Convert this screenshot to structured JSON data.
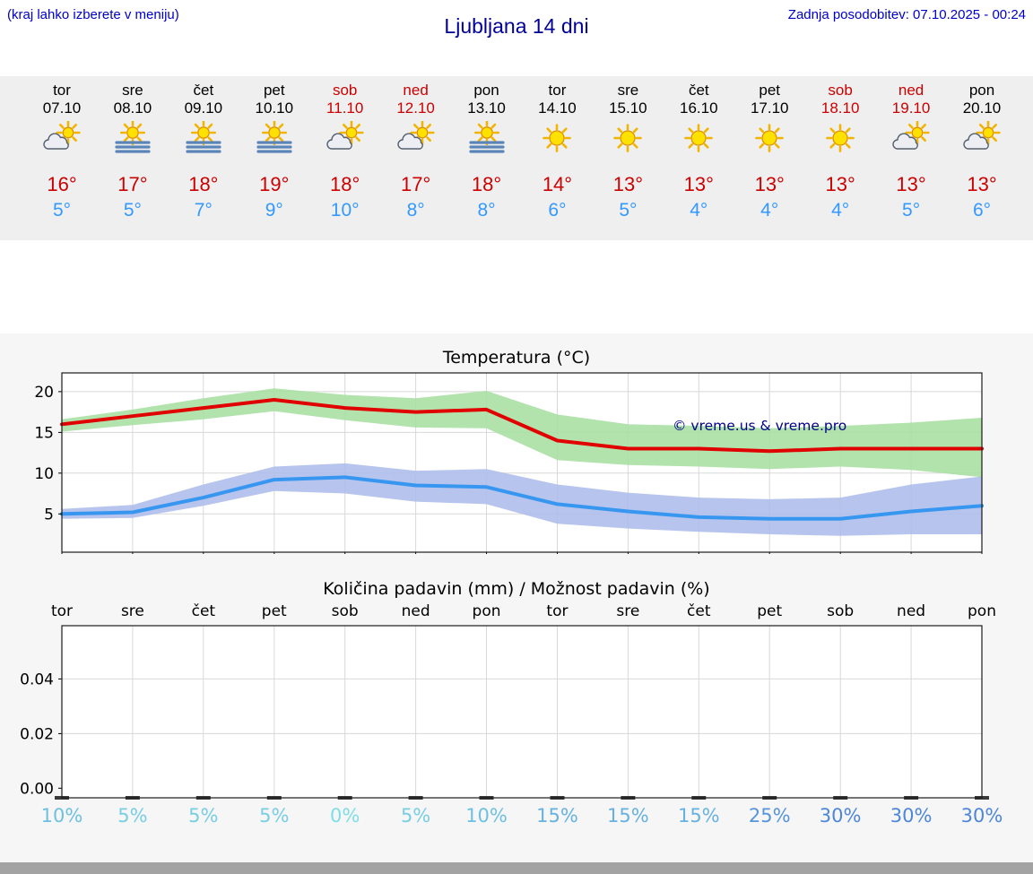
{
  "header": {
    "menu_hint": "(kraj lahko izberete v meniju)",
    "title": "Ljubljana 14 dni",
    "last_update": "Zadnja posodobitev: 07.10.2025 - 00:24"
  },
  "colors": {
    "link_blue": "#0000cd",
    "title_blue": "#000099",
    "high_red": "#cc0000",
    "low_blue": "#3399ff",
    "weekend_red": "#cc0000",
    "weekday_black": "#000000",
    "strip_background": "#efefef",
    "chart_background": "#f6f6f6"
  },
  "forecast_days": [
    {
      "day": "tor",
      "date": "07.10",
      "weekend": false,
      "icon": "sun-cloud",
      "high": "16°",
      "low": "5°"
    },
    {
      "day": "sre",
      "date": "08.10",
      "weekend": false,
      "icon": "sun-fog",
      "high": "17°",
      "low": "5°"
    },
    {
      "day": "čet",
      "date": "09.10",
      "weekend": false,
      "icon": "sun-fog",
      "high": "18°",
      "low": "7°"
    },
    {
      "day": "pet",
      "date": "10.10",
      "weekend": false,
      "icon": "sun-fog",
      "high": "19°",
      "low": "9°"
    },
    {
      "day": "sob",
      "date": "11.10",
      "weekend": true,
      "icon": "sun-cloud",
      "high": "18°",
      "low": "10°"
    },
    {
      "day": "ned",
      "date": "12.10",
      "weekend": true,
      "icon": "sun-cloud",
      "high": "17°",
      "low": "8°"
    },
    {
      "day": "pon",
      "date": "13.10",
      "weekend": false,
      "icon": "sun-fog",
      "high": "18°",
      "low": "8°"
    },
    {
      "day": "tor",
      "date": "14.10",
      "weekend": false,
      "icon": "sun",
      "high": "14°",
      "low": "6°"
    },
    {
      "day": "sre",
      "date": "15.10",
      "weekend": false,
      "icon": "sun",
      "high": "13°",
      "low": "5°"
    },
    {
      "day": "čet",
      "date": "16.10",
      "weekend": false,
      "icon": "sun",
      "high": "13°",
      "low": "4°"
    },
    {
      "day": "pet",
      "date": "17.10",
      "weekend": false,
      "icon": "sun",
      "high": "13°",
      "low": "4°"
    },
    {
      "day": "sob",
      "date": "18.10",
      "weekend": true,
      "icon": "sun",
      "high": "13°",
      "low": "4°"
    },
    {
      "day": "ned",
      "date": "19.10",
      "weekend": true,
      "icon": "sun-cloud",
      "high": "13°",
      "low": "5°"
    },
    {
      "day": "pon",
      "date": "20.10",
      "weekend": false,
      "icon": "sun-cloud",
      "high": "13°",
      "low": "6°"
    }
  ],
  "chart_data": [
    {
      "type": "line",
      "title": "Temperatura (°C)",
      "categories": [
        "tor",
        "sre",
        "čet",
        "pet",
        "sob",
        "ned",
        "pon",
        "tor",
        "sre",
        "čet",
        "pet",
        "sob",
        "ned",
        "pon"
      ],
      "ylim": [
        0.3,
        22.3
      ],
      "yticks": [
        5,
        10,
        15,
        20
      ],
      "grid": true,
      "legend": "none",
      "annotation": "© vreme.us & vreme.pro",
      "series": [
        {
          "name": "max-temp",
          "color": "#e10000",
          "values": [
            16,
            17,
            18,
            19,
            18,
            17.5,
            17.8,
            14,
            13,
            13,
            12.7,
            13,
            13,
            13
          ]
        },
        {
          "name": "max-temp-range-upper",
          "color": "#a7dfa2",
          "values": [
            16.6,
            17.8,
            19.2,
            20.4,
            19.6,
            19.2,
            20.1,
            17.2,
            16,
            15.8,
            15.5,
            15.8,
            16.2,
            16.8
          ]
        },
        {
          "name": "max-temp-range-lower",
          "color": "#a7dfa2",
          "values": [
            15.1,
            15.9,
            16.6,
            17.6,
            16.5,
            15.6,
            15.5,
            11.6,
            11,
            10.8,
            10.5,
            10.8,
            10.4,
            9.5
          ]
        },
        {
          "name": "min-temp",
          "color": "#3797f0",
          "values": [
            5,
            5.2,
            7,
            9.2,
            9.5,
            8.5,
            8.3,
            6.2,
            5.3,
            4.6,
            4.4,
            4.4,
            5.3,
            6
          ]
        },
        {
          "name": "min-temp-range-upper",
          "color": "#adbcea",
          "values": [
            5.6,
            6.1,
            8.6,
            10.8,
            11.2,
            10.3,
            10.5,
            8.6,
            7.6,
            7,
            6.8,
            7,
            8.6,
            9.6
          ]
        },
        {
          "name": "min-temp-range-lower",
          "color": "#adbcea",
          "values": [
            4.4,
            4.5,
            6,
            7.8,
            7.5,
            6.5,
            6.2,
            3.8,
            3.2,
            2.8,
            2.5,
            2.3,
            2.5,
            2.5
          ]
        }
      ]
    },
    {
      "type": "bar",
      "title": "Količina padavin (mm) / Možnost padavin (%)",
      "categories": [
        "tor",
        "sre",
        "čet",
        "pet",
        "sob",
        "ned",
        "pon",
        "tor",
        "sre",
        "čet",
        "pet",
        "sob",
        "ned",
        "pon"
      ],
      "ylim": [
        -0.0035,
        0.0595
      ],
      "yticks": [
        {
          "label": "0.00",
          "value": 0
        },
        {
          "label": "0.02",
          "value": 0.02
        },
        {
          "label": "0.04",
          "value": 0.04
        }
      ],
      "grid": true,
      "precip_mm": [
        0,
        0,
        0,
        0,
        0,
        0,
        0,
        0,
        0,
        0,
        0,
        0,
        0,
        0
      ],
      "probabilities": [
        {
          "value": 10,
          "label": "10%",
          "color": "#6ec0e3"
        },
        {
          "value": 5,
          "label": "5%",
          "color": "#77cee5"
        },
        {
          "value": 5,
          "label": "5%",
          "color": "#77cee5"
        },
        {
          "value": 5,
          "label": "5%",
          "color": "#77cee5"
        },
        {
          "value": 0,
          "label": "0%",
          "color": "#7fdde8"
        },
        {
          "value": 5,
          "label": "5%",
          "color": "#77cee5"
        },
        {
          "value": 10,
          "label": "10%",
          "color": "#6ec0e3"
        },
        {
          "value": 15,
          "label": "15%",
          "color": "#66b1e0"
        },
        {
          "value": 15,
          "label": "15%",
          "color": "#66b1e0"
        },
        {
          "value": 15,
          "label": "15%",
          "color": "#66b1e0"
        },
        {
          "value": 25,
          "label": "25%",
          "color": "#5694db"
        },
        {
          "value": 30,
          "label": "30%",
          "color": "#4e86d9"
        },
        {
          "value": 30,
          "label": "30%",
          "color": "#4e86d9"
        },
        {
          "value": 30,
          "label": "30%",
          "color": "#4e86d9"
        }
      ]
    }
  ]
}
